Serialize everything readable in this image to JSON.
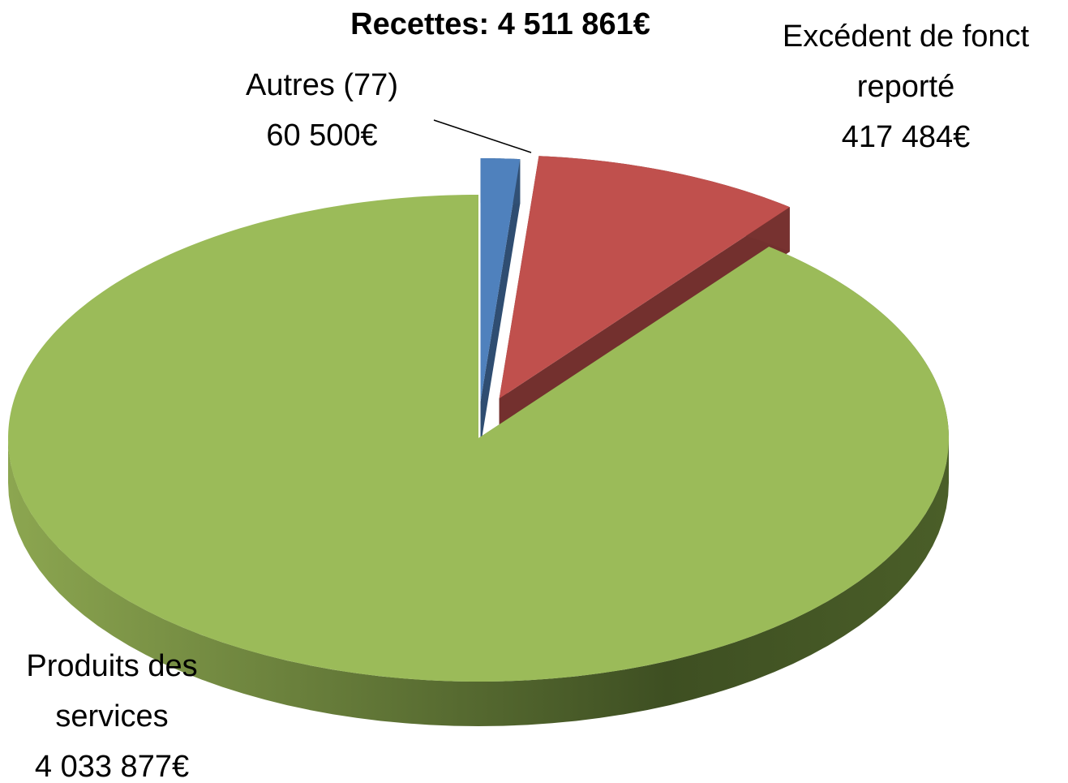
{
  "chart_data": {
    "type": "pie3d",
    "title": "Recettes: 4 511 861€",
    "categories": [
      "Autres (77)",
      "Excédent de fonct reporté",
      "Produits des services"
    ],
    "values": [
      60500,
      417484,
      4033877
    ],
    "value_labels": [
      "60 500€",
      "417 484€",
      "4 033 877€"
    ],
    "colors": [
      "#4f81bd",
      "#c0504d",
      "#9bbb59"
    ]
  }
}
